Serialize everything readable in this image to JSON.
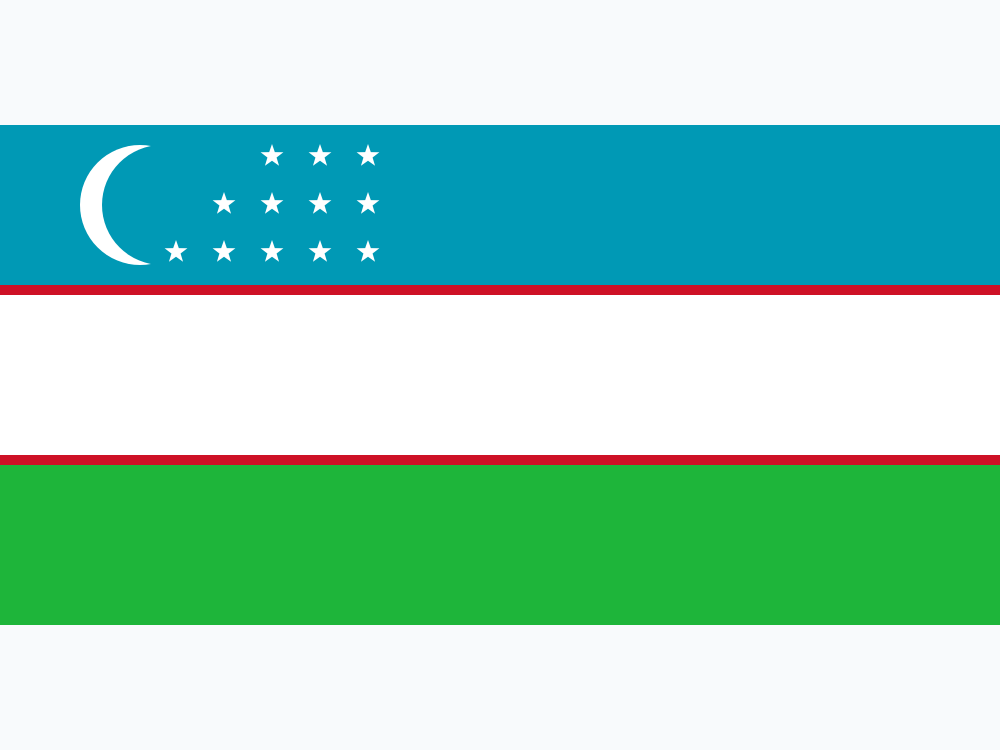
{
  "background": "#f8fafc",
  "flag": {
    "name": "flag-of-uzbekistan",
    "stripes": [
      {
        "name": "top-stripe",
        "color": "#0099b5"
      },
      {
        "name": "upper-fimbriation",
        "color": "#ce1126"
      },
      {
        "name": "middle-stripe",
        "color": "#ffffff"
      },
      {
        "name": "lower-fimbriation",
        "color": "#ce1126"
      },
      {
        "name": "bottom-stripe",
        "color": "#1eb53a"
      }
    ],
    "emblem": {
      "crescent_icon": "crescent-moon-icon",
      "crescent_color": "#ffffff",
      "star_icon": "star-icon",
      "star_color": "#ffffff",
      "star_rows": [
        3,
        4,
        5
      ],
      "star_count": 12
    }
  }
}
